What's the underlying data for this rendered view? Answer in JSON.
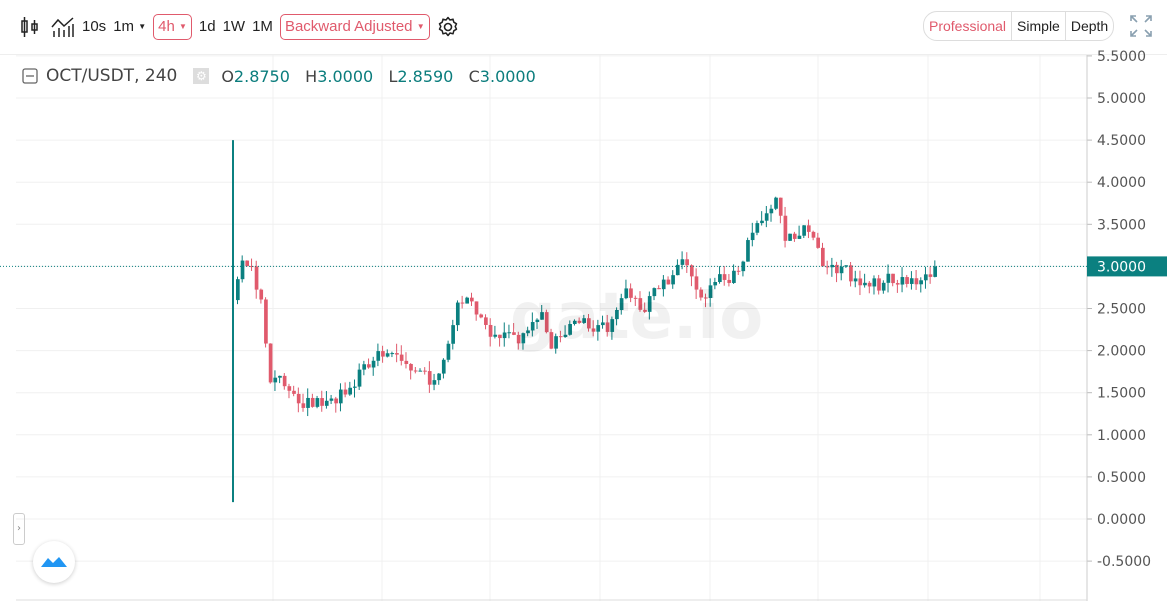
{
  "toolbar": {
    "intervals": [
      "10s",
      "1m",
      "4h",
      "1d",
      "1W",
      "1M"
    ],
    "selected_interval": "4h",
    "adjustment": "Backward Adjusted",
    "views": [
      "Professional",
      "Simple",
      "Depth"
    ],
    "active_view": "Professional"
  },
  "legend": {
    "symbol": "OCT/USDT, 240",
    "o_label": "O",
    "o": "2.8750",
    "h_label": "H",
    "h": "3.0000",
    "l_label": "L",
    "l": "2.8590",
    "c_label": "C",
    "c": "3.0000"
  },
  "watermark": "gate.io",
  "price_axis": {
    "labels": [
      "5.5000",
      "5.0000",
      "4.5000",
      "4.0000",
      "3.5000",
      "3.0000",
      "2.5000",
      "2.0000",
      "1.5000",
      "1.0000",
      "0.5000",
      "0.0000",
      "-0.5000"
    ],
    "last_price": "3.0000"
  },
  "colors": {
    "up": "#0b8080",
    "down": "#e05a6c",
    "accent": "#e05a6c"
  },
  "chart_data": {
    "type": "candlestick",
    "first_candle": {
      "open": 2.6,
      "high": 4.5,
      "low": 0.2,
      "close": 2.6
    },
    "closes_sampled": [
      3.1,
      3.0,
      2.6,
      1.6,
      1.7,
      1.55,
      1.4,
      1.4,
      1.4,
      1.4,
      1.4,
      1.5,
      1.6,
      1.85,
      1.9,
      1.95,
      1.95,
      1.9,
      1.8,
      1.75,
      1.6,
      1.7,
      2.1,
      2.6,
      2.6,
      2.4,
      2.3,
      2.2,
      2.2,
      2.15,
      2.2,
      2.3,
      2.45,
      2.0,
      2.2,
      2.3,
      2.35,
      2.3,
      2.3,
      2.25,
      2.5,
      2.75,
      2.6,
      2.5,
      2.75,
      2.85,
      2.9,
      3.05,
      2.9,
      2.6,
      2.8,
      2.9,
      2.8,
      2.95,
      3.3,
      3.5,
      3.6,
      3.8,
      3.3,
      3.3,
      3.45,
      3.35,
      3.0,
      3.0,
      3.0,
      2.85,
      2.8,
      2.8,
      2.75,
      2.9,
      2.8,
      2.8,
      2.8,
      2.9,
      3.0
    ],
    "last_price": 3.0,
    "ylim": [
      -0.6,
      5.6
    ]
  }
}
